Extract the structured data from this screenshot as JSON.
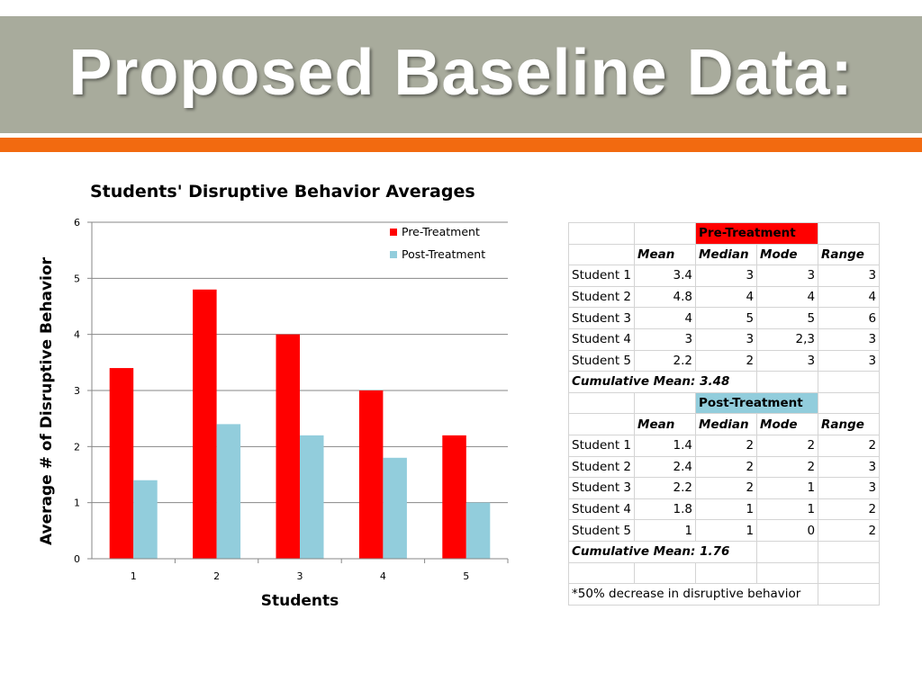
{
  "slide": {
    "title": "Proposed Baseline Data:",
    "header_color": "#a8ab9c",
    "accent_color": "#f26a10"
  },
  "chart_data": {
    "type": "bar",
    "title": "Students' Disruptive Behavior Averages",
    "xlabel": "Students",
    "ylabel": "Average # of Disruptive Behavior",
    "categories": [
      "1",
      "2",
      "3",
      "4",
      "5"
    ],
    "ylim": [
      0,
      6
    ],
    "yticks": [
      "0",
      "1",
      "2",
      "3",
      "4",
      "5",
      "6"
    ],
    "grid": true,
    "legend_position": "top-right",
    "series": [
      {
        "name": "Pre-Treatment",
        "color": "#ff0000",
        "values": [
          3.4,
          4.8,
          4,
          3,
          2.2
        ]
      },
      {
        "name": "Post-Treatment",
        "color": "#92cddc",
        "values": [
          1.4,
          2.4,
          2.2,
          1.8,
          1
        ]
      }
    ]
  },
  "table": {
    "pre_header": "Pre-Treatment",
    "post_header": "Post-Treatment",
    "col_headers": [
      "Mean",
      "Median",
      "Mode",
      "Range"
    ],
    "pre_rows": [
      [
        "Student 1",
        "3.4",
        "3",
        "3",
        "3"
      ],
      [
        "Student 2",
        "4.8",
        "4",
        "4",
        "4"
      ],
      [
        "Student 3",
        "4",
        "5",
        "5",
        "6"
      ],
      [
        "Student 4",
        "3",
        "3",
        "2,3",
        "3"
      ],
      [
        "Student 5",
        "2.2",
        "2",
        "3",
        "3"
      ]
    ],
    "pre_cumulative": "Cumulative Mean: 3.48",
    "post_rows": [
      [
        "Student 1",
        "1.4",
        "2",
        "2",
        "2"
      ],
      [
        "Student 2",
        "2.4",
        "2",
        "2",
        "3"
      ],
      [
        "Student 3",
        "2.2",
        "2",
        "1",
        "3"
      ],
      [
        "Student 4",
        "1.8",
        "1",
        "1",
        "2"
      ],
      [
        "Student 5",
        "1",
        "1",
        "0",
        "2"
      ]
    ],
    "post_cumulative": "Cumulative Mean: 1.76",
    "footnote": "*50% decrease in disruptive behavior"
  }
}
